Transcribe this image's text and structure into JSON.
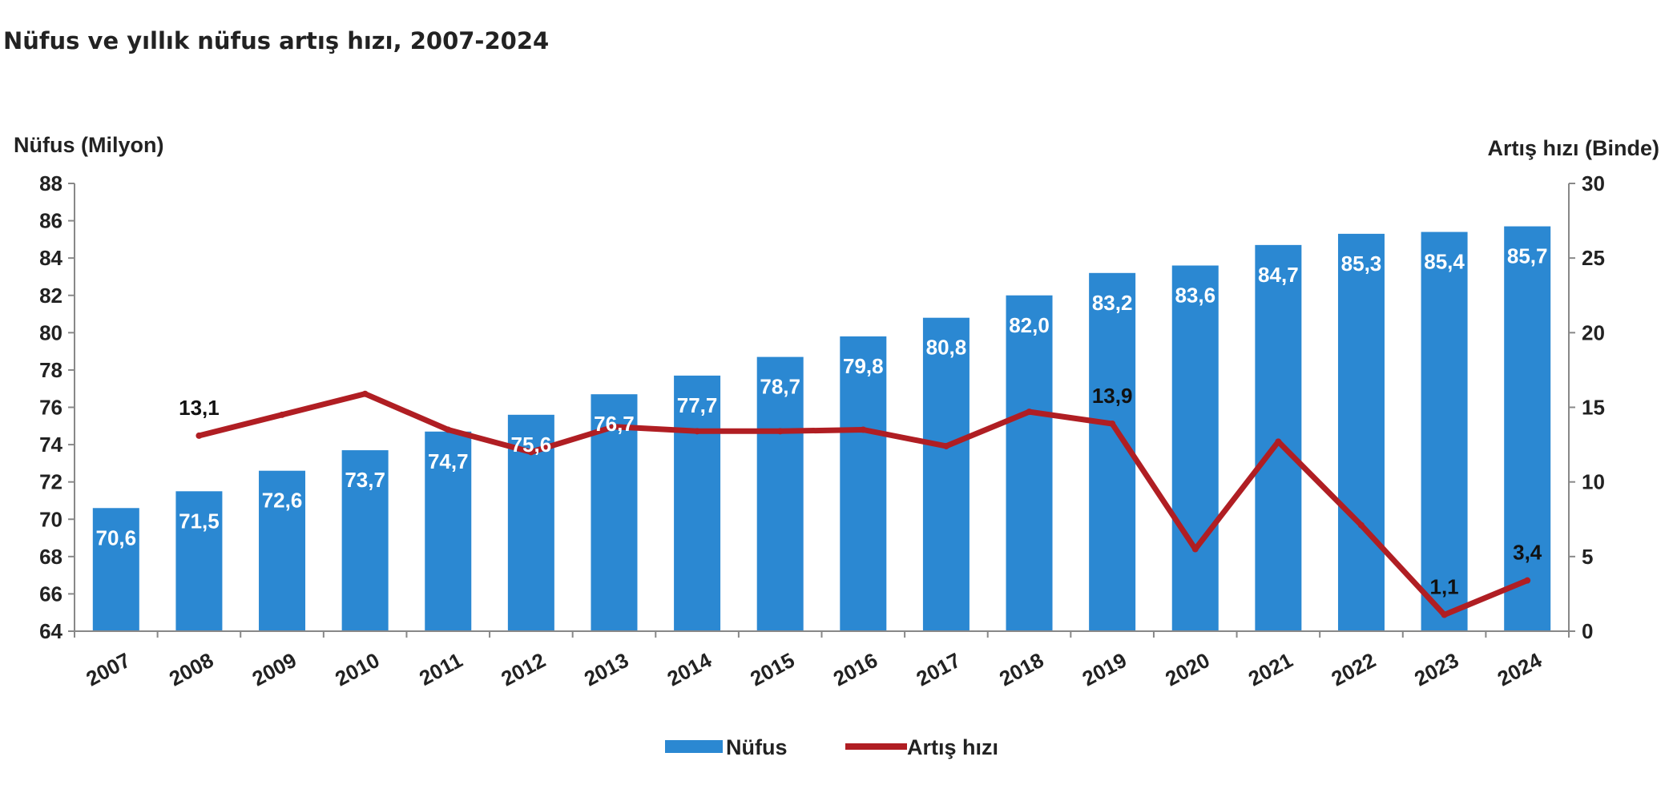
{
  "title": "Nüfus ve yıllık nüfus artış hızı, 2007-2024",
  "chart_data": {
    "type": "bar",
    "title": "Nüfus ve yıllık nüfus artış hızı, 2007-2024",
    "categories": [
      "2007",
      "2008",
      "2009",
      "2010",
      "2011",
      "2012",
      "2013",
      "2014",
      "2015",
      "2016",
      "2017",
      "2018",
      "2019",
      "2020",
      "2021",
      "2022",
      "2023",
      "2024"
    ],
    "ylabel": "Nüfus (Milyon)",
    "y2label": "Artış hızı (Binde)",
    "ylim": [
      64,
      88
    ],
    "yticks": [
      "88",
      "86",
      "84",
      "82",
      "80",
      "78",
      "76",
      "74",
      "72",
      "70",
      "68",
      "66",
      "64"
    ],
    "y2lim": [
      0,
      30
    ],
    "y2ticks": [
      "30",
      "25",
      "20",
      "15",
      "10",
      "5",
      "0"
    ],
    "series": [
      {
        "name": "Nüfus",
        "type": "bar",
        "axis": "left",
        "color": "#2b88d2",
        "values": [
          70.6,
          71.5,
          72.6,
          73.7,
          74.7,
          75.6,
          76.7,
          77.7,
          78.7,
          79.8,
          80.8,
          82.0,
          83.2,
          83.6,
          84.7,
          85.3,
          85.4,
          85.7
        ],
        "labels": [
          "70,6",
          "71,5",
          "72,6",
          "73,7",
          "74,7",
          "75,6",
          "76,7",
          "77,7",
          "78,7",
          "79,8",
          "80,8",
          "82,0",
          "83,2",
          "83,6",
          "84,7",
          "85,3",
          "85,4",
          "85,7"
        ]
      },
      {
        "name": "Artış hızı",
        "type": "line",
        "axis": "right",
        "color": "#b01e23",
        "x": [
          "2008",
          "2009",
          "2010",
          "2011",
          "2012",
          "2013",
          "2014",
          "2015",
          "2016",
          "2017",
          "2018",
          "2019",
          "2020",
          "2021",
          "2022",
          "2023",
          "2024"
        ],
        "values": [
          13.1,
          14.5,
          15.9,
          13.5,
          12.0,
          13.7,
          13.4,
          13.4,
          13.5,
          12.4,
          14.7,
          13.9,
          5.5,
          12.7,
          7.1,
          1.1,
          3.4
        ],
        "labels": [
          {
            "x": "2008",
            "text": "13,1"
          },
          {
            "x": "2019",
            "text": "13,9"
          },
          {
            "x": "2023",
            "text": "1,1"
          },
          {
            "x": "2024",
            "text": "3,4"
          }
        ]
      }
    ],
    "legend": [
      "Nüfus",
      "Artış hızı"
    ],
    "legend_position": "bottom",
    "grid": false
  }
}
